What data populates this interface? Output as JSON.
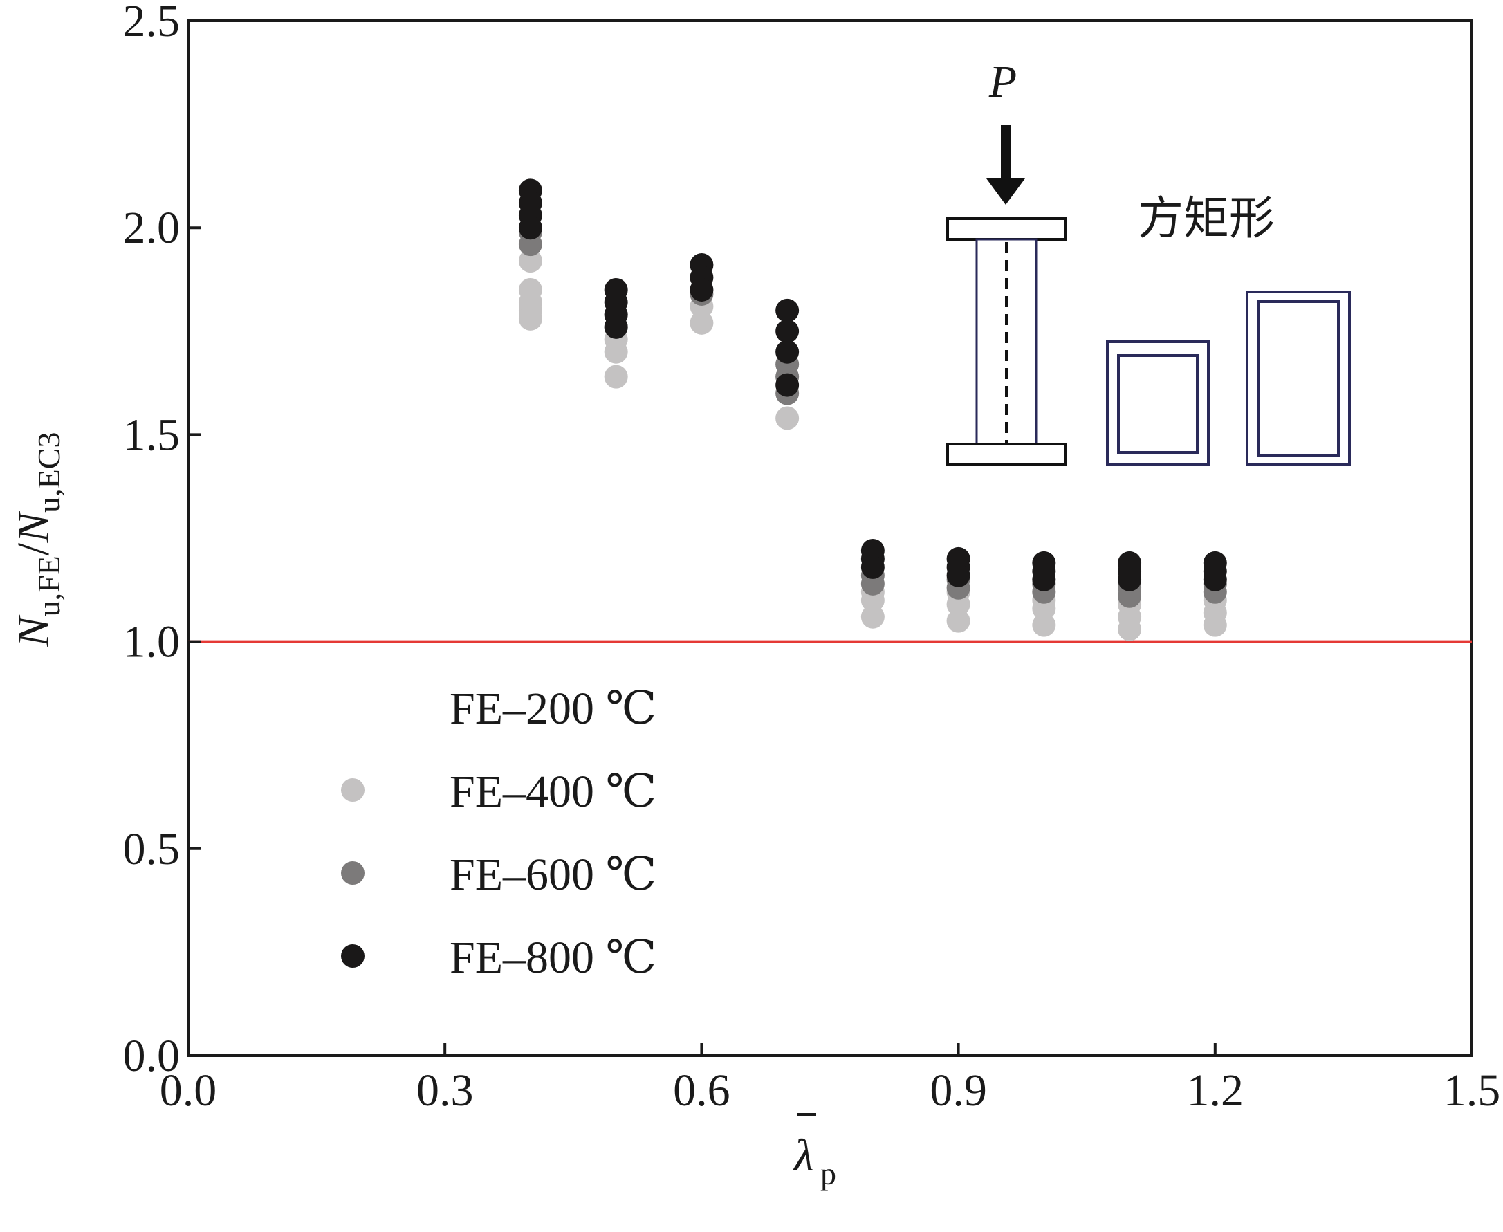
{
  "chart_data": {
    "type": "scatter",
    "xlabel": {
      "main": "λ",
      "sub": "p",
      "overbar": true
    },
    "ylabel": {
      "n1": "N",
      "s1": "u,FE",
      "slash": "/",
      "n2": "N",
      "s2": "u,EC3"
    },
    "xlim": [
      0.0,
      1.5
    ],
    "ylim": [
      0.0,
      2.5
    ],
    "xticks": [
      "0.0",
      "0.3",
      "0.6",
      "0.9",
      "1.2",
      "1.5"
    ],
    "yticks": [
      "0.0",
      "0.5",
      "1.0",
      "1.5",
      "2.0",
      "2.5"
    ],
    "grid": false,
    "legend_position": "lower-left",
    "reference_line": {
      "y": 1.0,
      "color": "#e53935"
    },
    "series": [
      {
        "name": "FE–200 ℃",
        "color": "#ffffff",
        "points": [
          [
            0.4,
            1.79
          ],
          [
            0.4,
            1.81
          ],
          [
            0.4,
            1.84
          ],
          [
            0.5,
            1.65
          ],
          [
            0.5,
            1.68
          ],
          [
            0.6,
            1.78
          ],
          [
            0.6,
            1.8
          ],
          [
            0.7,
            1.55
          ],
          [
            0.8,
            1.07
          ],
          [
            0.8,
            1.09
          ],
          [
            0.9,
            1.06
          ],
          [
            0.9,
            1.08
          ],
          [
            1.0,
            1.05
          ],
          [
            1.0,
            1.07
          ],
          [
            1.1,
            1.04
          ],
          [
            1.1,
            1.06
          ],
          [
            1.2,
            1.05
          ],
          [
            1.2,
            1.07
          ]
        ]
      },
      {
        "name": "FE–400 ℃",
        "color": "#c4c2c2",
        "points": [
          [
            0.4,
            1.78
          ],
          [
            0.4,
            1.8
          ],
          [
            0.4,
            1.82
          ],
          [
            0.4,
            1.85
          ],
          [
            0.4,
            1.92
          ],
          [
            0.5,
            1.64
          ],
          [
            0.5,
            1.7
          ],
          [
            0.5,
            1.73
          ],
          [
            0.6,
            1.77
          ],
          [
            0.6,
            1.81
          ],
          [
            0.7,
            1.54
          ],
          [
            0.8,
            1.06
          ],
          [
            0.8,
            1.1
          ],
          [
            0.8,
            1.12
          ],
          [
            0.9,
            1.05
          ],
          [
            0.9,
            1.09
          ],
          [
            0.9,
            1.12
          ],
          [
            1.0,
            1.04
          ],
          [
            1.0,
            1.08
          ],
          [
            1.0,
            1.1
          ],
          [
            1.1,
            1.03
          ],
          [
            1.1,
            1.06
          ],
          [
            1.1,
            1.09
          ],
          [
            1.2,
            1.04
          ],
          [
            1.2,
            1.07
          ],
          [
            1.2,
            1.1
          ]
        ]
      },
      {
        "name": "FE–600 ℃",
        "color": "#7c7a7a",
        "points": [
          [
            0.4,
            1.96
          ],
          [
            0.4,
            1.99
          ],
          [
            0.5,
            1.76
          ],
          [
            0.5,
            1.79
          ],
          [
            0.6,
            1.84
          ],
          [
            0.7,
            1.6
          ],
          [
            0.7,
            1.64
          ],
          [
            0.7,
            1.67
          ],
          [
            0.8,
            1.14
          ],
          [
            0.8,
            1.16
          ],
          [
            0.9,
            1.13
          ],
          [
            0.9,
            1.15
          ],
          [
            1.0,
            1.12
          ],
          [
            1.0,
            1.14
          ],
          [
            1.1,
            1.11
          ],
          [
            1.1,
            1.13
          ],
          [
            1.2,
            1.12
          ],
          [
            1.2,
            1.14
          ]
        ]
      },
      {
        "name": "FE–800 ℃",
        "color": "#1a1818",
        "points": [
          [
            0.4,
            2.09
          ],
          [
            0.4,
            2.06
          ],
          [
            0.4,
            2.03
          ],
          [
            0.4,
            2.0
          ],
          [
            0.5,
            1.85
          ],
          [
            0.5,
            1.82
          ],
          [
            0.5,
            1.79
          ],
          [
            0.5,
            1.76
          ],
          [
            0.6,
            1.91
          ],
          [
            0.6,
            1.88
          ],
          [
            0.6,
            1.85
          ],
          [
            0.7,
            1.8
          ],
          [
            0.7,
            1.75
          ],
          [
            0.7,
            1.7
          ],
          [
            0.7,
            1.62
          ],
          [
            0.8,
            1.22
          ],
          [
            0.8,
            1.2
          ],
          [
            0.8,
            1.18
          ],
          [
            0.9,
            1.2
          ],
          [
            0.9,
            1.18
          ],
          [
            0.9,
            1.16
          ],
          [
            1.0,
            1.19
          ],
          [
            1.0,
            1.17
          ],
          [
            1.0,
            1.15
          ],
          [
            1.1,
            1.19
          ],
          [
            1.1,
            1.17
          ],
          [
            1.1,
            1.15
          ],
          [
            1.2,
            1.19
          ],
          [
            1.2,
            1.17
          ],
          [
            1.2,
            1.15
          ]
        ]
      }
    ],
    "inset": {
      "load_label": "P",
      "section_label": "方矩形",
      "icons": [
        "column-with-load-icon",
        "square-hollow-section-icon",
        "rectangular-hollow-section-icon"
      ]
    }
  }
}
